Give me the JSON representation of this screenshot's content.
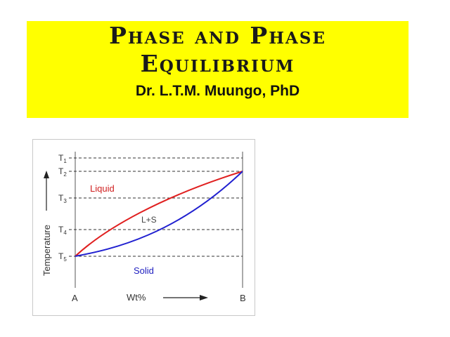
{
  "slide": {
    "title_line1": "Phase and Phase",
    "title_line2": "Equilibrium",
    "author": "Dr. L.T.M. Muungo, PhD",
    "banner_color": "#ffff00"
  },
  "diagram": {
    "y_axis_label": "Temperature",
    "x_axis_label": "Wt%",
    "x_left": "A",
    "x_right": "B",
    "temperatures": [
      {
        "base": "T",
        "sub": "1"
      },
      {
        "base": "T",
        "sub": "2"
      },
      {
        "base": "T",
        "sub": "3"
      },
      {
        "base": "T",
        "sub": "4"
      },
      {
        "base": "T",
        "sub": "5"
      }
    ],
    "regions": {
      "liquid": "Liquid",
      "two_phase": "L+S",
      "solid": "Solid"
    },
    "colors": {
      "liquidus": "#e02020",
      "solidus": "#2020d0",
      "liquid_label": "#d02020",
      "solid_label": "#2020c0"
    }
  }
}
